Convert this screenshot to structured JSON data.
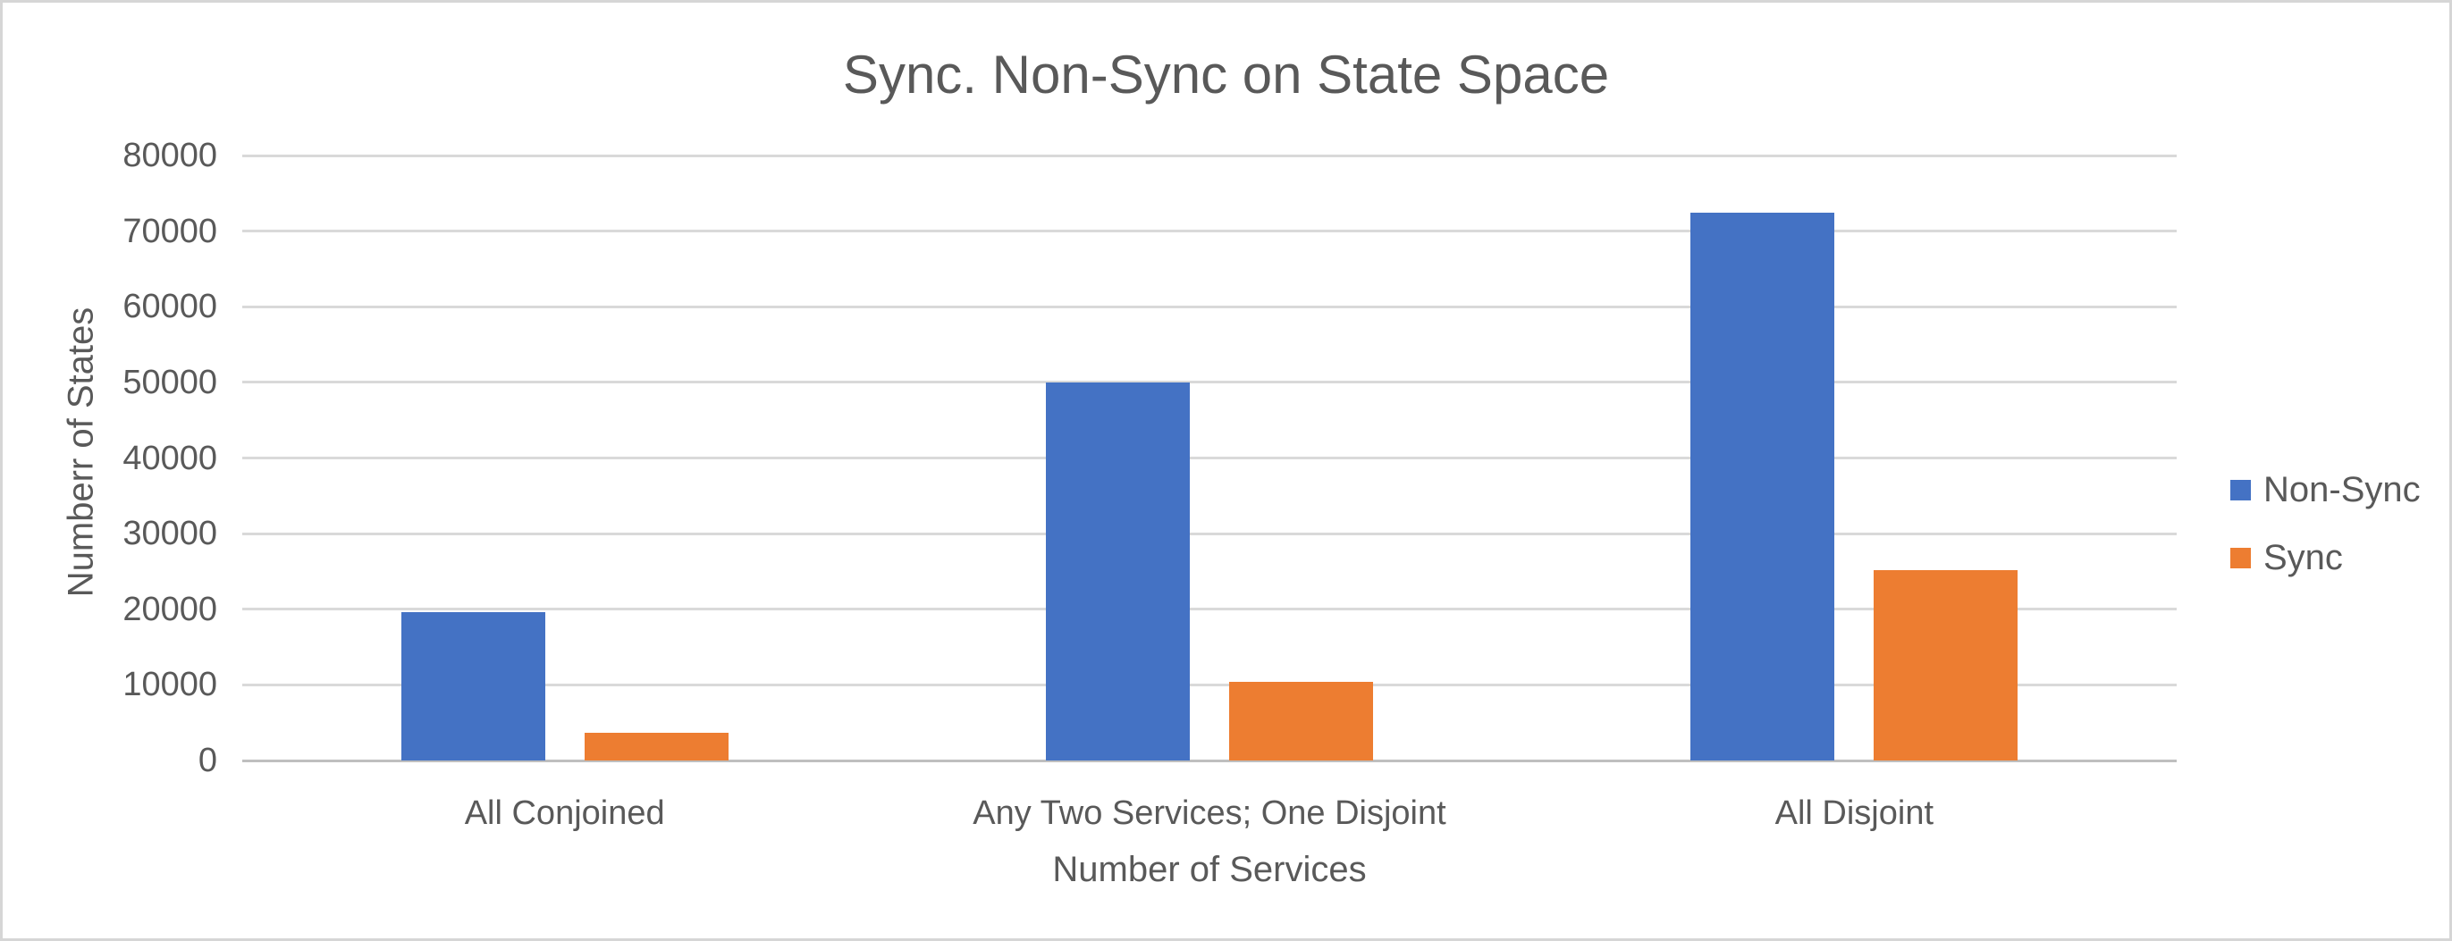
{
  "window": {
    "background_color": "#ffffff",
    "frame_border_color": "#d6d6d6"
  },
  "chart_data": {
    "type": "bar",
    "title": "Sync. Non-Sync on State Space",
    "xlabel": "Number of Services",
    "ylabel": "Numberr of States",
    "categories": [
      "All Conjoined",
      "Any Two Services; One Disjoint",
      "All Disjoint"
    ],
    "series": [
      {
        "name": "Non-Sync",
        "color": "#4472C4",
        "values": [
          19600,
          50000,
          72400
        ]
      },
      {
        "name": "Sync",
        "color": "#ED7D31",
        "values": [
          3700,
          10400,
          25200
        ]
      }
    ],
    "ylim": [
      0,
      80000
    ],
    "ytick_step": 10000,
    "yticks": [
      0,
      10000,
      20000,
      30000,
      40000,
      50000,
      60000,
      70000,
      80000
    ],
    "grid": true,
    "gridline_color": "#d9d9d9",
    "axis_line_color": "#bfbfbf",
    "text_color": "#595959",
    "legend_position": "right-middle",
    "legend": [
      "Non-Sync",
      "Sync"
    ]
  }
}
